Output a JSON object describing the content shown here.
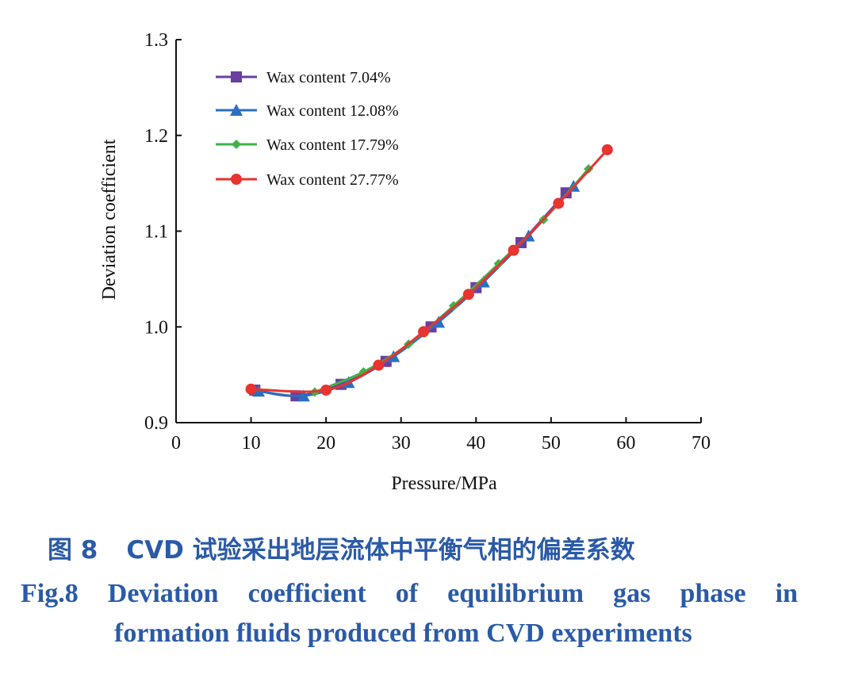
{
  "chart_data": {
    "type": "line",
    "title": "",
    "xlabel": "Pressure/MPa",
    "ylabel": "Deviation coefficient",
    "xlim": [
      0,
      70
    ],
    "ylim": [
      0.9,
      1.3
    ],
    "xticks": [
      "0",
      "10",
      "20",
      "30",
      "40",
      "50",
      "60",
      "70"
    ],
    "yticks": [
      "0.9",
      "1.0",
      "1.1",
      "1.2",
      "1.3"
    ],
    "legend_position": "top-left",
    "series": [
      {
        "name": "Wax content 7.04%",
        "color": "#6a3fa0",
        "marker": "square",
        "x": [
          10.5,
          16.0,
          22.0,
          28.0,
          34.0,
          40.0,
          46.0,
          52.0
        ],
        "y": [
          0.934,
          0.928,
          0.94,
          0.964,
          1.0,
          1.041,
          1.088,
          1.14
        ]
      },
      {
        "name": "Wax content 12.08%",
        "color": "#2a6fc0",
        "marker": "triangle",
        "x": [
          11.0,
          17.0,
          23.0,
          29.0,
          35.0,
          41.0,
          47.0,
          53.0
        ],
        "y": [
          0.933,
          0.928,
          0.942,
          0.969,
          1.005,
          1.047,
          1.095,
          1.147
        ]
      },
      {
        "name": "Wax content 17.79%",
        "color": "#3db34a",
        "marker": "diamond",
        "x": [
          18.5,
          25.0,
          31.0,
          37.0,
          43.0,
          49.0,
          55.0
        ],
        "y": [
          0.932,
          0.953,
          0.982,
          1.022,
          1.066,
          1.112,
          1.165
        ]
      },
      {
        "name": "Wax content 27.77%",
        "color": "#e8332f",
        "marker": "circle",
        "x": [
          10.0,
          20.0,
          27.0,
          33.0,
          39.0,
          45.0,
          51.0,
          57.5
        ],
        "y": [
          0.935,
          0.934,
          0.96,
          0.995,
          1.034,
          1.08,
          1.129,
          1.185
        ]
      }
    ]
  },
  "caption": {
    "cn_prefix": "图 8",
    "cn_text": "CVD 试验采出地层流体中平衡气相的偏差系数",
    "en_line1": "Fig.8 Deviation coefficient of equilibrium gas phase in",
    "en_line2": "formation fluids produced from CVD experiments",
    "color": "#2a5aa8"
  }
}
